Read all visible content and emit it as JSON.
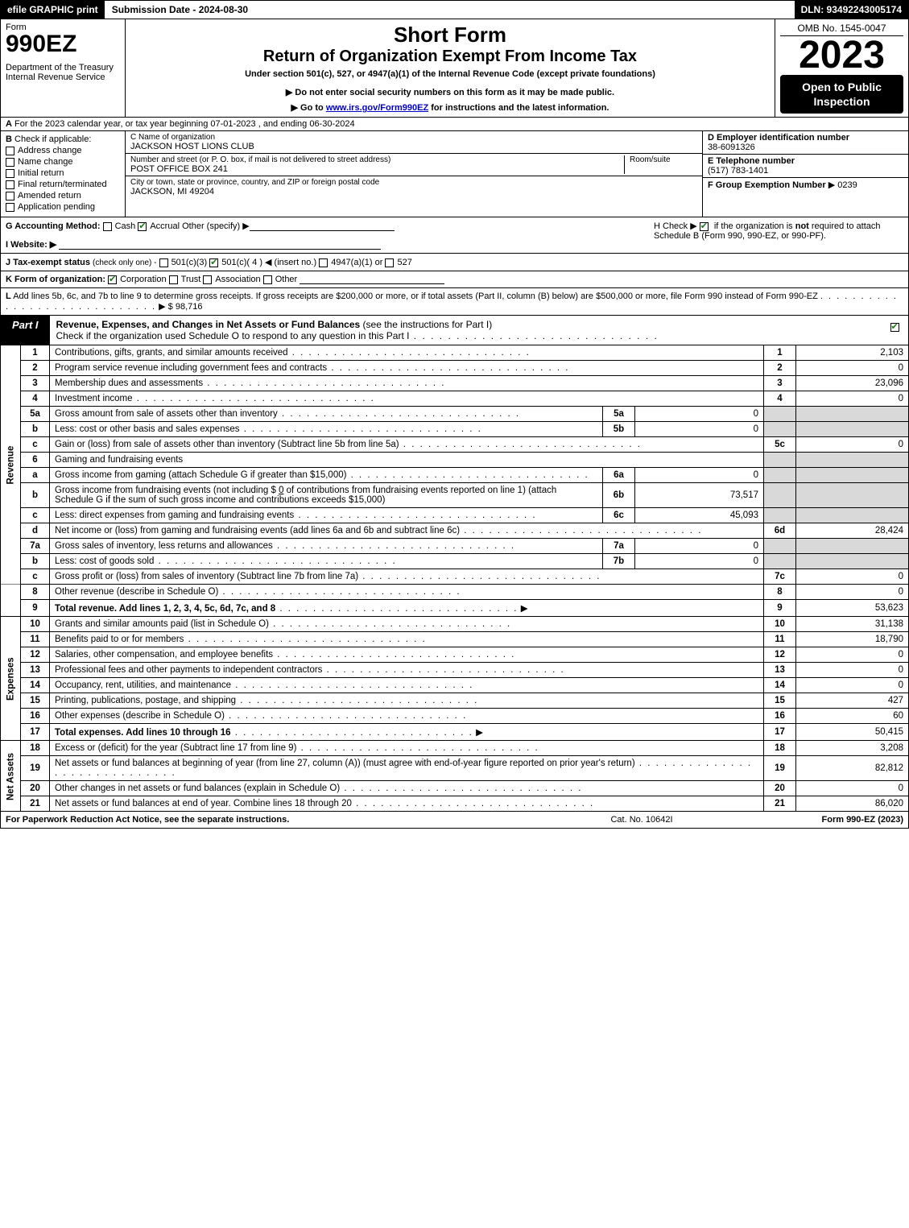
{
  "topbar": {
    "efile": "efile GRAPHIC print",
    "submission": "Submission Date - 2024-08-30",
    "dln": "DLN: 93492243005174"
  },
  "header": {
    "form_word": "Form",
    "form_number": "990EZ",
    "dept": "Department of the Treasury\nInternal Revenue Service",
    "title1": "Short Form",
    "title2": "Return of Organization Exempt From Income Tax",
    "subtitle": "Under section 501(c), 527, or 4947(a)(1) of the Internal Revenue Code (except private foundations)",
    "warn1": "▶ Do not enter social security numbers on this form as it may be made public.",
    "warn2": "▶ Go to ",
    "warn2_link": "www.irs.gov/Form990EZ",
    "warn2_tail": " for instructions and the latest information.",
    "omb": "OMB No. 1545-0047",
    "year": "2023",
    "open": "Open to Public Inspection"
  },
  "rowA": {
    "label": "A",
    "text": "For the 2023 calendar year, or tax year beginning 07-01-2023 , and ending 06-30-2024"
  },
  "B": {
    "label": "B",
    "heading": "Check if applicable:",
    "items": [
      {
        "label": "Address change",
        "checked": false
      },
      {
        "label": "Name change",
        "checked": false
      },
      {
        "label": "Initial return",
        "checked": false
      },
      {
        "label": "Final return/terminated",
        "checked": false
      },
      {
        "label": "Amended return",
        "checked": false
      },
      {
        "label": "Application pending",
        "checked": false
      }
    ]
  },
  "C": {
    "name_label": "C Name of organization",
    "name": "JACKSON HOST LIONS CLUB",
    "addr_label": "Number and street (or P. O. box, if mail is not delivered to street address)",
    "room_label": "Room/suite",
    "addr": "POST OFFICE BOX 241",
    "city_label": "City or town, state or province, country, and ZIP or foreign postal code",
    "city": "JACKSON, MI  49204"
  },
  "DEF": {
    "d_label": "D Employer identification number",
    "d_val": "38-6091326",
    "e_label": "E Telephone number",
    "e_val": "(517) 783-1401",
    "f_label": "F Group Exemption Number",
    "f_val": "▶ 0239"
  },
  "G": {
    "label": "G Accounting Method:",
    "cash": "Cash",
    "accrual": "Accrual",
    "other": "Other (specify) ▶"
  },
  "H": {
    "text1": "H  Check ▶ ",
    "text2": " if the organization is ",
    "not": "not",
    "text3": " required to attach Schedule B (Form 990, 990-EZ, or 990-PF)."
  },
  "I": {
    "label": "I Website: ▶"
  },
  "J": {
    "label": "J Tax-exempt status",
    "tiny": "(check only one) -",
    "opt1": "501(c)(3)",
    "opt2": "501(c)( 4 ) ◀ (insert no.)",
    "opt3": "4947(a)(1) or",
    "opt4": "527"
  },
  "K": {
    "label": "K Form of organization:",
    "opts": [
      "Corporation",
      "Trust",
      "Association",
      "Other"
    ],
    "checked": 0
  },
  "L": {
    "label": "L",
    "text": "Add lines 5b, 6c, and 7b to line 9 to determine gross receipts. If gross receipts are $200,000 or more, or if total assets (Part II, column (B) below) are $500,000 or more, file Form 990 instead of Form 990-EZ",
    "value": "▶ $ 98,716"
  },
  "partI": {
    "tab": "Part I",
    "title": "Revenue, Expenses, and Changes in Net Assets or Fund Balances",
    "title_tail": " (see the instructions for Part I)",
    "sub": "Check if the organization used Schedule O to respond to any question in this Part I"
  },
  "sidebars": {
    "revenue": "Revenue",
    "expenses": "Expenses",
    "netassets": "Net Assets"
  },
  "lines": {
    "l1": {
      "num": "1",
      "desc": "Contributions, gifts, grants, and similar amounts received",
      "ref": "1",
      "val": "2,103"
    },
    "l2": {
      "num": "2",
      "desc": "Program service revenue including government fees and contracts",
      "ref": "2",
      "val": "0"
    },
    "l3": {
      "num": "3",
      "desc": "Membership dues and assessments",
      "ref": "3",
      "val": "23,096"
    },
    "l4": {
      "num": "4",
      "desc": "Investment income",
      "ref": "4",
      "val": "0"
    },
    "l5a": {
      "num": "5a",
      "desc": "Gross amount from sale of assets other than inventory",
      "subref": "5a",
      "subval": "0"
    },
    "l5b": {
      "num": "b",
      "desc": "Less: cost or other basis and sales expenses",
      "subref": "5b",
      "subval": "0"
    },
    "l5c": {
      "num": "c",
      "desc": "Gain or (loss) from sale of assets other than inventory (Subtract line 5b from line 5a)",
      "ref": "5c",
      "val": "0"
    },
    "l6": {
      "num": "6",
      "desc": "Gaming and fundraising events"
    },
    "l6a": {
      "num": "a",
      "desc": "Gross income from gaming (attach Schedule G if greater than $15,000)",
      "subref": "6a",
      "subval": "0"
    },
    "l6b": {
      "num": "b",
      "desc_pre": "Gross income from fundraising events (not including $ ",
      "desc_amt": "0",
      "desc_post": " of contributions from fundraising events reported on line 1) (attach Schedule G if the sum of such gross income and contributions exceeds $15,000)",
      "subref": "6b",
      "subval": "73,517"
    },
    "l6c": {
      "num": "c",
      "desc": "Less: direct expenses from gaming and fundraising events",
      "subref": "6c",
      "subval": "45,093"
    },
    "l6d": {
      "num": "d",
      "desc": "Net income or (loss) from gaming and fundraising events (add lines 6a and 6b and subtract line 6c)",
      "ref": "6d",
      "val": "28,424"
    },
    "l7a": {
      "num": "7a",
      "desc": "Gross sales of inventory, less returns and allowances",
      "subref": "7a",
      "subval": "0"
    },
    "l7b": {
      "num": "b",
      "desc": "Less: cost of goods sold",
      "subref": "7b",
      "subval": "0"
    },
    "l7c": {
      "num": "c",
      "desc": "Gross profit or (loss) from sales of inventory (Subtract line 7b from line 7a)",
      "ref": "7c",
      "val": "0"
    },
    "l8": {
      "num": "8",
      "desc": "Other revenue (describe in Schedule O)",
      "ref": "8",
      "val": "0"
    },
    "l9": {
      "num": "9",
      "desc": "Total revenue. Add lines 1, 2, 3, 4, 5c, 6d, 7c, and 8",
      "ref": "9",
      "val": "53,623",
      "bold": true,
      "arrow": true
    },
    "l10": {
      "num": "10",
      "desc": "Grants and similar amounts paid (list in Schedule O)",
      "ref": "10",
      "val": "31,138"
    },
    "l11": {
      "num": "11",
      "desc": "Benefits paid to or for members",
      "ref": "11",
      "val": "18,790"
    },
    "l12": {
      "num": "12",
      "desc": "Salaries, other compensation, and employee benefits",
      "ref": "12",
      "val": "0"
    },
    "l13": {
      "num": "13",
      "desc": "Professional fees and other payments to independent contractors",
      "ref": "13",
      "val": "0"
    },
    "l14": {
      "num": "14",
      "desc": "Occupancy, rent, utilities, and maintenance",
      "ref": "14",
      "val": "0"
    },
    "l15": {
      "num": "15",
      "desc": "Printing, publications, postage, and shipping",
      "ref": "15",
      "val": "427"
    },
    "l16": {
      "num": "16",
      "desc": "Other expenses (describe in Schedule O)",
      "ref": "16",
      "val": "60"
    },
    "l17": {
      "num": "17",
      "desc": "Total expenses. Add lines 10 through 16",
      "ref": "17",
      "val": "50,415",
      "bold": true,
      "arrow": true
    },
    "l18": {
      "num": "18",
      "desc": "Excess or (deficit) for the year (Subtract line 17 from line 9)",
      "ref": "18",
      "val": "3,208"
    },
    "l19": {
      "num": "19",
      "desc": "Net assets or fund balances at beginning of year (from line 27, column (A)) (must agree with end-of-year figure reported on prior year's return)",
      "ref": "19",
      "val": "82,812"
    },
    "l20": {
      "num": "20",
      "desc": "Other changes in net assets or fund balances (explain in Schedule O)",
      "ref": "20",
      "val": "0"
    },
    "l21": {
      "num": "21",
      "desc": "Net assets or fund balances at end of year. Combine lines 18 through 20",
      "ref": "21",
      "val": "86,020"
    }
  },
  "footer": {
    "left": "For Paperwork Reduction Act Notice, see the separate instructions.",
    "mid": "Cat. No. 10642I",
    "right_pre": "Form ",
    "right_bold": "990-EZ",
    "right_post": " (2023)"
  }
}
